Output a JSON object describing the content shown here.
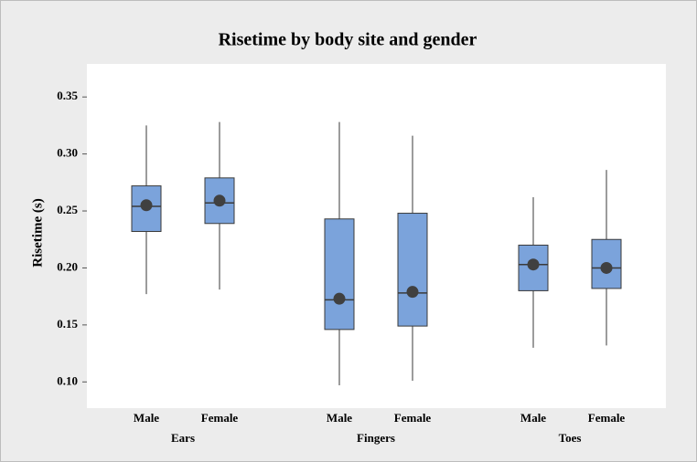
{
  "chart_data": {
    "type": "box",
    "title": "Risetime by body site and gender",
    "ylabel": "Risetime (s)",
    "ylim": [
      0.077,
      0.379
    ],
    "yticks": [
      {
        "value": 0.1,
        "label": "0.10"
      },
      0.15,
      {
        "value": 0.2,
        "label": "0.20"
      },
      0.25,
      {
        "value": 0.3,
        "label": "0.30"
      },
      0.35
    ],
    "color": "#7ba3db",
    "groups": [
      {
        "name": "Ears",
        "boxes": [
          {
            "label": "Male",
            "whisker_low": 0.177,
            "q1": 0.232,
            "median": 0.254,
            "q3": 0.272,
            "whisker_high": 0.325,
            "mean": 0.255
          },
          {
            "label": "Female",
            "whisker_low": 0.181,
            "q1": 0.239,
            "median": 0.257,
            "q3": 0.279,
            "whisker_high": 0.328,
            "mean": 0.259
          }
        ]
      },
      {
        "name": "Fingers",
        "boxes": [
          {
            "label": "Male",
            "whisker_low": 0.097,
            "q1": 0.146,
            "median": 0.172,
            "q3": 0.243,
            "whisker_high": 0.328,
            "mean": 0.173
          },
          {
            "label": "Female",
            "whisker_low": 0.101,
            "q1": 0.149,
            "median": 0.178,
            "q3": 0.248,
            "whisker_high": 0.316,
            "mean": 0.179
          }
        ]
      },
      {
        "name": "Toes",
        "boxes": [
          {
            "label": "Male",
            "whisker_low": 0.13,
            "q1": 0.18,
            "median": 0.203,
            "q3": 0.22,
            "whisker_high": 0.262,
            "mean": 0.203
          },
          {
            "label": "Female",
            "whisker_low": 0.132,
            "q1": 0.182,
            "median": 0.2,
            "q3": 0.225,
            "whisker_high": 0.286,
            "mean": 0.2
          }
        ]
      }
    ]
  }
}
